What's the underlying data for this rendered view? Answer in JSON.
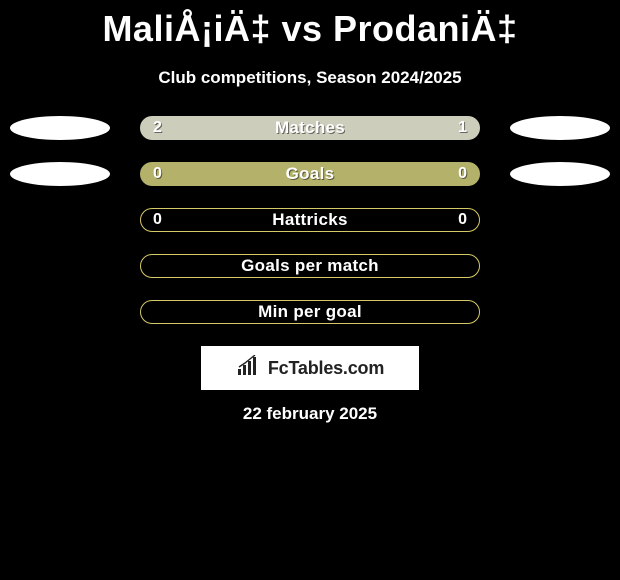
{
  "title": "MaliÅ¡iÄ‡ vs ProdaniÄ‡",
  "subtitle": "Club competitions, Season 2024/2025",
  "rows": [
    {
      "label": "Matches",
      "left": "2",
      "right": "1",
      "barStyle": "light",
      "leftOval": true,
      "rightOval": true
    },
    {
      "label": "Goals",
      "left": "0",
      "right": "0",
      "barStyle": "olive",
      "leftOval": true,
      "rightOval": true
    },
    {
      "label": "Hattricks",
      "left": "0",
      "right": "0",
      "barStyle": "outline",
      "leftOval": false,
      "rightOval": false
    },
    {
      "label": "Goals per match",
      "left": "",
      "right": "",
      "barStyle": "outline",
      "leftOval": false,
      "rightOval": false
    },
    {
      "label": "Min per goal",
      "left": "",
      "right": "",
      "barStyle": "outline",
      "leftOval": false,
      "rightOval": false
    }
  ],
  "banner": {
    "text": "FcTables.com"
  },
  "date": "22 february 2025",
  "colors": {
    "background": "#000000",
    "barLight": "#cdcdbb",
    "barOlive": "#b4b26a",
    "barOutline": "#d6c968",
    "oval": "#ffffff",
    "bannerBg": "#ffffff",
    "textShadow": "rgba(0,0,0,0.5)"
  }
}
